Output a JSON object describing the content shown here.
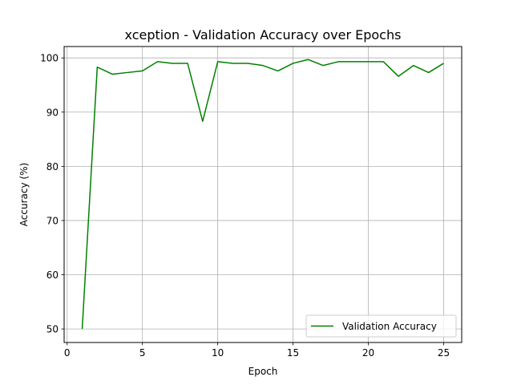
{
  "chart_data": {
    "type": "line",
    "title": "xception - Validation Accuracy over Epochs",
    "xlabel": "Epoch",
    "ylabel": "Accuracy (%)",
    "xlim": [
      -0.2,
      26.2
    ],
    "ylim": [
      47.5,
      102.1
    ],
    "xticks": [
      0,
      5,
      10,
      15,
      20,
      25
    ],
    "yticks": [
      50,
      60,
      70,
      80,
      90,
      100
    ],
    "grid": true,
    "legend_position": "lower right",
    "series": [
      {
        "name": "Validation Accuracy",
        "color": "#008000",
        "x": [
          1,
          2,
          3,
          4,
          5,
          6,
          7,
          8,
          9,
          10,
          11,
          12,
          13,
          14,
          15,
          16,
          17,
          18,
          19,
          20,
          21,
          22,
          23,
          24,
          25
        ],
        "y": [
          50.0,
          98.3,
          97.0,
          97.3,
          97.6,
          99.3,
          99.0,
          99.0,
          88.3,
          99.3,
          99.0,
          99.0,
          98.6,
          97.6,
          99.0,
          99.7,
          98.6,
          99.3,
          99.3,
          99.3,
          99.3,
          96.6,
          98.6,
          97.3,
          99.0
        ]
      }
    ]
  }
}
